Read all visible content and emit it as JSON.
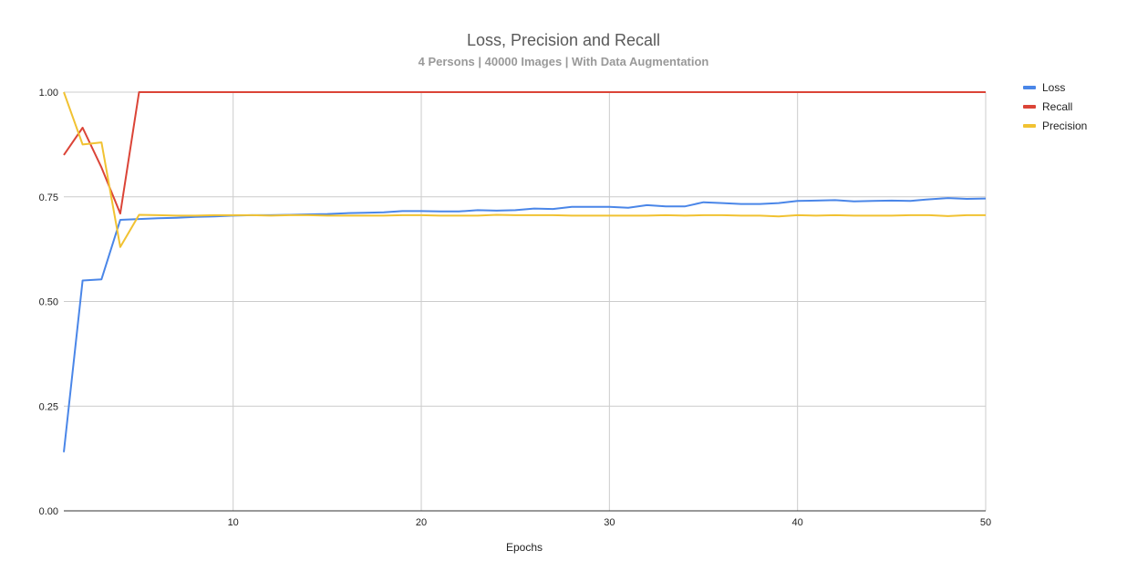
{
  "chart_data": {
    "type": "line",
    "title": "Loss, Precision and Recall",
    "subtitle": "4 Persons | 40000 Images | With Data Augmentation",
    "xlabel": "Epochs",
    "ylabel": "",
    "xlim": [
      1,
      50
    ],
    "ylim": [
      0,
      1
    ],
    "x_ticks": [
      "10",
      "20",
      "30",
      "40",
      "50"
    ],
    "y_ticks": [
      "0.00",
      "0.25",
      "0.50",
      "0.75",
      "1.00"
    ],
    "grid": true,
    "legend_position": "right",
    "x": [
      1,
      2,
      3,
      4,
      5,
      6,
      7,
      8,
      9,
      10,
      11,
      12,
      13,
      14,
      15,
      16,
      17,
      18,
      19,
      20,
      21,
      22,
      23,
      24,
      25,
      26,
      27,
      28,
      29,
      30,
      31,
      32,
      33,
      34,
      35,
      36,
      37,
      38,
      39,
      40,
      41,
      42,
      43,
      44,
      45,
      46,
      47,
      48,
      49,
      50
    ],
    "series": [
      {
        "name": "Loss",
        "color": "#4a86e8",
        "values": [
          0.14,
          0.55,
          0.553,
          0.695,
          0.697,
          0.699,
          0.7,
          0.702,
          0.703,
          0.705,
          0.706,
          0.706,
          0.707,
          0.708,
          0.709,
          0.711,
          0.712,
          0.713,
          0.716,
          0.716,
          0.715,
          0.715,
          0.718,
          0.717,
          0.718,
          0.722,
          0.721,
          0.726,
          0.726,
          0.726,
          0.724,
          0.73,
          0.727,
          0.727,
          0.737,
          0.735,
          0.733,
          0.733,
          0.735,
          0.74,
          0.741,
          0.742,
          0.739,
          0.74,
          0.741,
          0.74,
          0.744,
          0.747,
          0.745,
          0.746
        ]
      },
      {
        "name": "Recall",
        "color": "#db4437",
        "values": [
          0.85,
          0.915,
          0.82,
          0.71,
          1.0,
          1.0,
          1.0,
          1.0,
          1.0,
          1.0,
          1.0,
          1.0,
          1.0,
          1.0,
          1.0,
          1.0,
          1.0,
          1.0,
          1.0,
          1.0,
          1.0,
          1.0,
          1.0,
          1.0,
          1.0,
          1.0,
          1.0,
          1.0,
          1.0,
          1.0,
          1.0,
          1.0,
          1.0,
          1.0,
          1.0,
          1.0,
          1.0,
          1.0,
          1.0,
          1.0,
          1.0,
          1.0,
          1.0,
          1.0,
          1.0,
          1.0,
          1.0,
          1.0,
          1.0,
          1.0
        ]
      },
      {
        "name": "Precision",
        "color": "#f1c232",
        "values": [
          1.0,
          0.875,
          0.88,
          0.63,
          0.707,
          0.706,
          0.705,
          0.705,
          0.706,
          0.706,
          0.706,
          0.705,
          0.706,
          0.706,
          0.705,
          0.705,
          0.705,
          0.705,
          0.706,
          0.706,
          0.705,
          0.705,
          0.705,
          0.707,
          0.706,
          0.706,
          0.706,
          0.705,
          0.705,
          0.705,
          0.705,
          0.705,
          0.706,
          0.705,
          0.706,
          0.706,
          0.705,
          0.705,
          0.703,
          0.706,
          0.705,
          0.706,
          0.705,
          0.705,
          0.705,
          0.706,
          0.706,
          0.704,
          0.706,
          0.706
        ]
      }
    ]
  }
}
